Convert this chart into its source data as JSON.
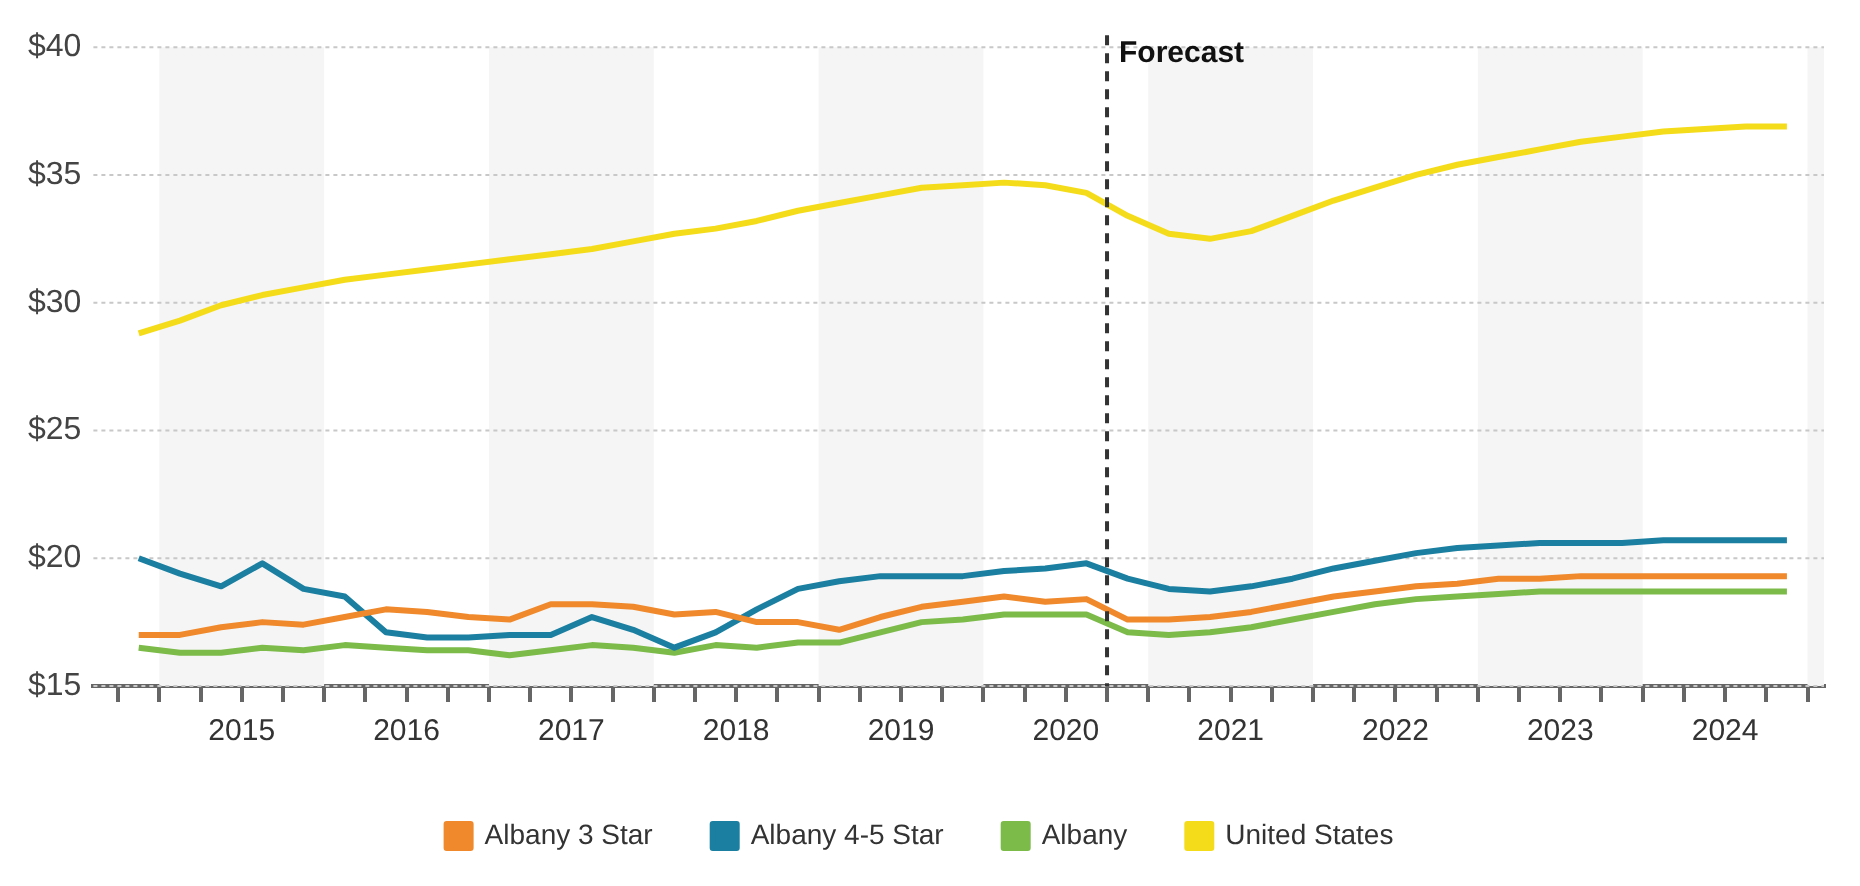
{
  "chart_data": {
    "type": "line",
    "x": [
      2014.875,
      2015.125,
      2015.375,
      2015.625,
      2015.875,
      2016.125,
      2016.375,
      2016.625,
      2016.875,
      2017.125,
      2017.375,
      2017.625,
      2017.875,
      2018.125,
      2018.375,
      2018.625,
      2018.875,
      2019.125,
      2019.375,
      2019.625,
      2019.875,
      2020.125,
      2020.375,
      2020.625,
      2020.875,
      2021.125,
      2021.375,
      2021.625,
      2021.875,
      2022.125,
      2022.375,
      2022.625,
      2022.875,
      2023.125,
      2023.375,
      2023.625,
      2023.875,
      2024.125,
      2024.375,
      2024.625,
      2024.875
    ],
    "series": [
      {
        "name": "Albany 3 Star",
        "color": "#f0892b",
        "values": [
          17.0,
          17.0,
          17.3,
          17.5,
          17.4,
          17.7,
          18.0,
          17.9,
          17.7,
          17.6,
          18.2,
          18.2,
          18.1,
          17.8,
          17.9,
          17.5,
          17.5,
          17.2,
          17.7,
          18.1,
          18.3,
          18.5,
          18.3,
          18.4,
          17.6,
          17.6,
          17.7,
          17.9,
          18.2,
          18.5,
          18.7,
          18.9,
          19.0,
          19.2,
          19.2,
          19.3,
          19.3,
          19.3,
          19.3,
          19.3,
          19.3
        ]
      },
      {
        "name": "Albany 4-5 Star",
        "color": "#1a7fa0",
        "values": [
          20.0,
          19.4,
          18.9,
          19.8,
          18.8,
          18.5,
          17.1,
          16.9,
          16.9,
          17.0,
          17.0,
          17.7,
          17.2,
          16.5,
          17.1,
          18.0,
          18.8,
          19.1,
          19.3,
          19.3,
          19.3,
          19.5,
          19.6,
          19.8,
          19.2,
          18.8,
          18.7,
          18.9,
          19.2,
          19.6,
          19.9,
          20.2,
          20.4,
          20.5,
          20.6,
          20.6,
          20.6,
          20.7,
          20.7,
          20.7,
          20.7
        ]
      },
      {
        "name": "Albany",
        "color": "#7cbb4a",
        "values": [
          16.5,
          16.3,
          16.3,
          16.5,
          16.4,
          16.6,
          16.5,
          16.4,
          16.4,
          16.2,
          16.4,
          16.6,
          16.5,
          16.3,
          16.6,
          16.5,
          16.7,
          16.7,
          17.1,
          17.5,
          17.6,
          17.8,
          17.8,
          17.8,
          17.1,
          17.0,
          17.1,
          17.3,
          17.6,
          17.9,
          18.2,
          18.4,
          18.5,
          18.6,
          18.7,
          18.7,
          18.7,
          18.7,
          18.7,
          18.7,
          18.7
        ]
      },
      {
        "name": "United States",
        "color": "#f5dc1a",
        "values": [
          28.8,
          29.3,
          29.9,
          30.3,
          30.6,
          30.9,
          31.1,
          31.3,
          31.5,
          31.7,
          31.9,
          32.1,
          32.4,
          32.7,
          32.9,
          33.2,
          33.6,
          33.9,
          34.2,
          34.5,
          34.6,
          34.7,
          34.6,
          34.3,
          33.4,
          32.7,
          32.5,
          32.8,
          33.4,
          34.0,
          34.5,
          35.0,
          35.4,
          35.7,
          36.0,
          36.3,
          36.5,
          36.7,
          36.8,
          36.9,
          36.9
        ]
      }
    ],
    "xlim": [
      2014.6,
      2025.1
    ],
    "xticks": [
      {
        "value": 2014.75,
        "label": null
      },
      {
        "value": 2015,
        "label": null
      },
      {
        "value": 2015.25,
        "label": null
      },
      {
        "value": 2015.5,
        "label": "2015"
      },
      {
        "value": 2015.75,
        "label": null
      },
      {
        "value": 2016,
        "label": null
      },
      {
        "value": 2016.25,
        "label": null
      },
      {
        "value": 2016.5,
        "label": "2016"
      },
      {
        "value": 2016.75,
        "label": null
      },
      {
        "value": 2017,
        "label": null
      },
      {
        "value": 2017.25,
        "label": null
      },
      {
        "value": 2017.5,
        "label": "2017"
      },
      {
        "value": 2017.75,
        "label": null
      },
      {
        "value": 2018,
        "label": null
      },
      {
        "value": 2018.25,
        "label": null
      },
      {
        "value": 2018.5,
        "label": "2018"
      },
      {
        "value": 2018.75,
        "label": null
      },
      {
        "value": 2019,
        "label": null
      },
      {
        "value": 2019.25,
        "label": null
      },
      {
        "value": 2019.5,
        "label": "2019"
      },
      {
        "value": 2019.75,
        "label": null
      },
      {
        "value": 2020,
        "label": null
      },
      {
        "value": 2020.25,
        "label": null
      },
      {
        "value": 2020.5,
        "label": "2020"
      },
      {
        "value": 2020.75,
        "label": null
      },
      {
        "value": 2021,
        "label": null
      },
      {
        "value": 2021.25,
        "label": null
      },
      {
        "value": 2021.5,
        "label": "2021"
      },
      {
        "value": 2021.75,
        "label": null
      },
      {
        "value": 2022,
        "label": null
      },
      {
        "value": 2022.25,
        "label": null
      },
      {
        "value": 2022.5,
        "label": "2022"
      },
      {
        "value": 2022.75,
        "label": null
      },
      {
        "value": 2023,
        "label": null
      },
      {
        "value": 2023.25,
        "label": null
      },
      {
        "value": 2023.5,
        "label": "2023"
      },
      {
        "value": 2023.75,
        "label": null
      },
      {
        "value": 2024,
        "label": null
      },
      {
        "value": 2024.25,
        "label": null
      },
      {
        "value": 2024.5,
        "label": "2024"
      },
      {
        "value": 2024.75,
        "label": null
      },
      {
        "value": 2025,
        "label": null
      }
    ],
    "ylim": [
      15,
      40
    ],
    "yticks": [
      {
        "value": 15,
        "label": "$15"
      },
      {
        "value": 20,
        "label": "$20"
      },
      {
        "value": 25,
        "label": "$25"
      },
      {
        "value": 30,
        "label": "$30"
      },
      {
        "value": 35,
        "label": "$35"
      },
      {
        "value": 40,
        "label": "$40"
      }
    ],
    "grid": "y",
    "legend": "bottom",
    "marker": "none",
    "line_style": "solid",
    "ref_lines": [
      {
        "axis": "x",
        "value": 2020.75,
        "label": "Forecast",
        "color": "#333333",
        "line_style": "dashed"
      }
    ],
    "bands": [
      {
        "axis": "x",
        "from": 2015,
        "to": 2016,
        "label": null,
        "color": "#f5f5f5"
      },
      {
        "axis": "x",
        "from": 2017,
        "to": 2018,
        "label": null,
        "color": "#f5f5f5"
      },
      {
        "axis": "x",
        "from": 2019,
        "to": 2020,
        "label": null,
        "color": "#f5f5f5"
      },
      {
        "axis": "x",
        "from": 2021,
        "to": 2022,
        "label": null,
        "color": "#f5f5f5"
      },
      {
        "axis": "x",
        "from": 2023,
        "to": 2024,
        "label": null,
        "color": "#f5f5f5"
      },
      {
        "axis": "x",
        "from": 2025,
        "to": 2025.1,
        "label": null,
        "color": "#f5f5f5"
      }
    ]
  }
}
